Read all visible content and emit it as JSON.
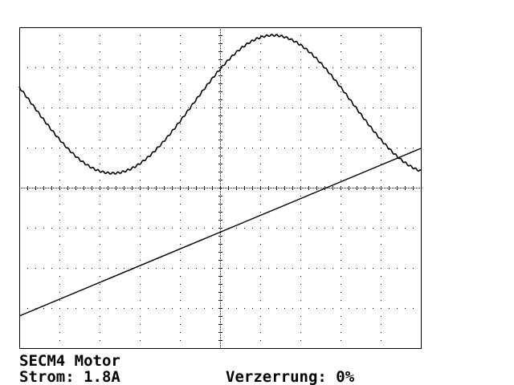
{
  "header": {
    "title": "SECM4 Motor"
  },
  "readings": {
    "current": "Strom: 1.8A",
    "distortion": "Verzerrung: 0%"
  }
}
